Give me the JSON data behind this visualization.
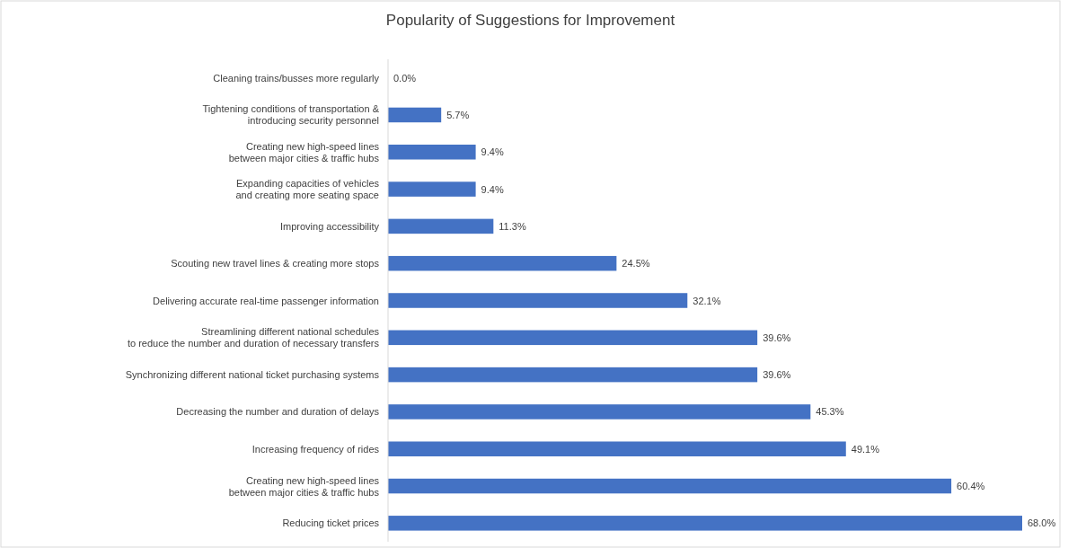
{
  "chart_data": {
    "type": "bar",
    "orientation": "horizontal",
    "title": "Popularity of Suggestions for Improvement",
    "categories": [
      "Cleaning trains/busses more regularly",
      "Tightening conditions of transportation &\nintroducing security personnel",
      "Creating new high-speed lines\nbetween major cities & traffic hubs",
      "Expanding capacities of vehicles\nand creating more seating space",
      "Improving accessibility",
      "Scouting new travel lines & creating more stops",
      "Delivering accurate real-time passenger information",
      "Streamlining different national schedules\nto reduce the number and duration of necessary transfers",
      "Synchronizing different national ticket purchasing systems",
      "Decreasing the number and duration of delays",
      "Increasing frequency of rides",
      "Creating new high-speed lines\nbetween major cities & traffic hubs",
      "Reducing ticket prices"
    ],
    "values": [
      0.0,
      5.7,
      9.4,
      9.4,
      11.3,
      24.5,
      32.1,
      39.6,
      39.6,
      45.3,
      49.1,
      60.4,
      68.0
    ],
    "value_labels": [
      "0.0%",
      "5.7%",
      "9.4%",
      "9.4%",
      "11.3%",
      "24.5%",
      "32.1%",
      "39.6%",
      "39.6%",
      "45.3%",
      "49.1%",
      "60.4%",
      "68.0%"
    ],
    "color": "#4472c4"
  }
}
